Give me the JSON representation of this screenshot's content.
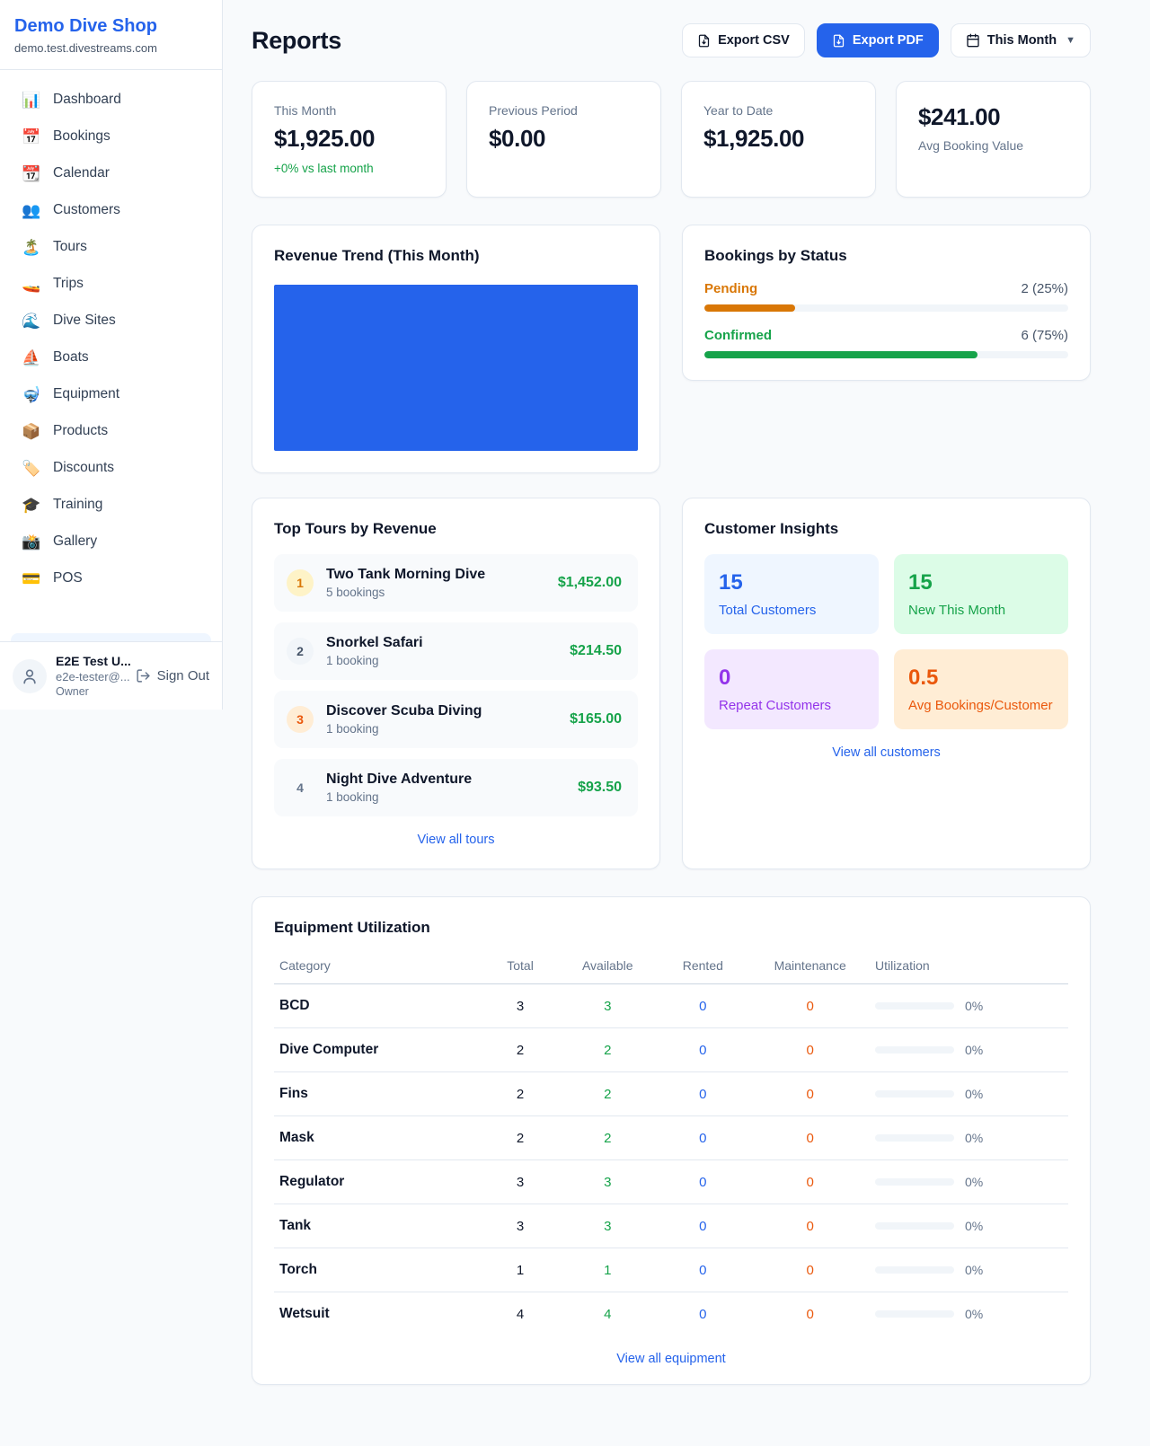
{
  "sidebar": {
    "title": "Demo Dive Shop",
    "subdomain": "demo.test.divestreams.com",
    "items": [
      {
        "slug": "dashboard",
        "label": "Dashboard",
        "icon": "📊",
        "icon_name": "bar-chart-icon"
      },
      {
        "slug": "bookings",
        "label": "Bookings",
        "icon": "📅",
        "icon_name": "calendar-date-icon"
      },
      {
        "slug": "calendar",
        "label": "Calendar",
        "icon": "📆",
        "icon_name": "calendar-icon"
      },
      {
        "slug": "customers",
        "label": "Customers",
        "icon": "👥",
        "icon_name": "people-icon"
      },
      {
        "slug": "tours",
        "label": "Tours",
        "icon": "🏝️",
        "icon_name": "island-icon"
      },
      {
        "slug": "trips",
        "label": "Trips",
        "icon": "🚤",
        "icon_name": "speedboat-icon"
      },
      {
        "slug": "dive-sites",
        "label": "Dive Sites",
        "icon": "🌊",
        "icon_name": "wave-icon"
      },
      {
        "slug": "boats",
        "label": "Boats",
        "icon": "⛵",
        "icon_name": "sailboat-icon"
      },
      {
        "slug": "equipment",
        "label": "Equipment",
        "icon": "🤿",
        "icon_name": "diving-mask-icon"
      },
      {
        "slug": "products",
        "label": "Products",
        "icon": "📦",
        "icon_name": "package-icon"
      },
      {
        "slug": "discounts",
        "label": "Discounts",
        "icon": "🏷️",
        "icon_name": "tag-icon"
      },
      {
        "slug": "training",
        "label": "Training",
        "icon": "🎓",
        "icon_name": "graduation-cap-icon"
      },
      {
        "slug": "gallery",
        "label": "Gallery",
        "icon": "📸",
        "icon_name": "camera-icon"
      },
      {
        "slug": "pos",
        "label": "POS",
        "icon": "💳",
        "icon_name": "credit-card-icon"
      }
    ],
    "user": {
      "name": "E2E Test U...",
      "email": "e2e-tester@...",
      "role": "Owner",
      "sign_out_label": "Sign Out"
    }
  },
  "header": {
    "title": "Reports",
    "export_csv_label": "Export CSV",
    "export_pdf_label": "Export PDF",
    "period_label": "This Month"
  },
  "stats": [
    {
      "label": "This Month",
      "value": "$1,925.00",
      "delta": "+0% vs last month"
    },
    {
      "label": "Previous Period",
      "value": "$0.00"
    },
    {
      "label": "Year to Date",
      "value": "$1,925.00"
    },
    {
      "label": "Avg Booking Value",
      "value": "$241.00"
    }
  ],
  "revenue_trend": {
    "title": "Revenue Trend (This Month)",
    "fill_color": "#2563eb"
  },
  "bookings_by_status": {
    "title": "Bookings by Status",
    "rows": [
      {
        "label": "Pending",
        "value": "2 (25%)",
        "percent": 25,
        "color": "#d97706"
      },
      {
        "label": "Confirmed",
        "value": "6 (75%)",
        "percent": 75,
        "color": "#16a34a"
      }
    ]
  },
  "top_tours": {
    "title": "Top Tours by Revenue",
    "link_label": "View all tours",
    "rows": [
      {
        "rank": "1",
        "name": "Two Tank Morning Dive",
        "sub": "5 bookings",
        "amount": "$1,452.00",
        "badge_bg": "#fef3c7",
        "badge_color": "#d97706"
      },
      {
        "rank": "2",
        "name": "Snorkel Safari",
        "sub": "1 booking",
        "amount": "$214.50",
        "badge_bg": "#f1f5f9",
        "badge_color": "#475569"
      },
      {
        "rank": "3",
        "name": "Discover Scuba Diving",
        "sub": "1 booking",
        "amount": "$165.00",
        "badge_bg": "#ffedd5",
        "badge_color": "#ea580c"
      },
      {
        "rank": "4",
        "name": "Night Dive Adventure",
        "sub": "1 booking",
        "amount": "$93.50",
        "badge_bg": "transparent",
        "badge_color": "#64748b"
      }
    ]
  },
  "customer_insights": {
    "title": "Customer Insights",
    "link_label": "View all customers",
    "tiles": [
      {
        "value": "15",
        "label": "Total Customers",
        "color": "#2563eb",
        "bg": "#eff6ff"
      },
      {
        "value": "15",
        "label": "New This Month",
        "color": "#16a34a",
        "bg": "#dcfce7"
      },
      {
        "value": "0",
        "label": "Repeat Customers",
        "color": "#9333ea",
        "bg": "#f3e8ff"
      },
      {
        "value": "0.5",
        "label": "Avg Bookings/Customer",
        "color": "#ea580c",
        "bg": "#ffedd5"
      }
    ]
  },
  "equipment": {
    "title": "Equipment Utilization",
    "link_label": "View all equipment",
    "columns": [
      "Category",
      "Total",
      "Available",
      "Rented",
      "Maintenance",
      "Utilization"
    ],
    "rows": [
      {
        "category": "BCD",
        "total": "3",
        "available": "3",
        "rented": "0",
        "maintenance": "0",
        "utilization": "0%"
      },
      {
        "category": "Dive Computer",
        "total": "2",
        "available": "2",
        "rented": "0",
        "maintenance": "0",
        "utilization": "0%"
      },
      {
        "category": "Fins",
        "total": "2",
        "available": "2",
        "rented": "0",
        "maintenance": "0",
        "utilization": "0%"
      },
      {
        "category": "Mask",
        "total": "2",
        "available": "2",
        "rented": "0",
        "maintenance": "0",
        "utilization": "0%"
      },
      {
        "category": "Regulator",
        "total": "3",
        "available": "3",
        "rented": "0",
        "maintenance": "0",
        "utilization": "0%"
      },
      {
        "category": "Tank",
        "total": "3",
        "available": "3",
        "rented": "0",
        "maintenance": "0",
        "utilization": "0%"
      },
      {
        "category": "Torch",
        "total": "1",
        "available": "1",
        "rented": "0",
        "maintenance": "0",
        "utilization": "0%"
      },
      {
        "category": "Wetsuit",
        "total": "4",
        "available": "4",
        "rented": "0",
        "maintenance": "0",
        "utilization": "0%"
      }
    ]
  },
  "colors": {
    "accent_blue": "#2563eb",
    "green": "#16a34a",
    "amber": "#d97706",
    "orange": "#ea580c",
    "purple": "#9333ea"
  }
}
